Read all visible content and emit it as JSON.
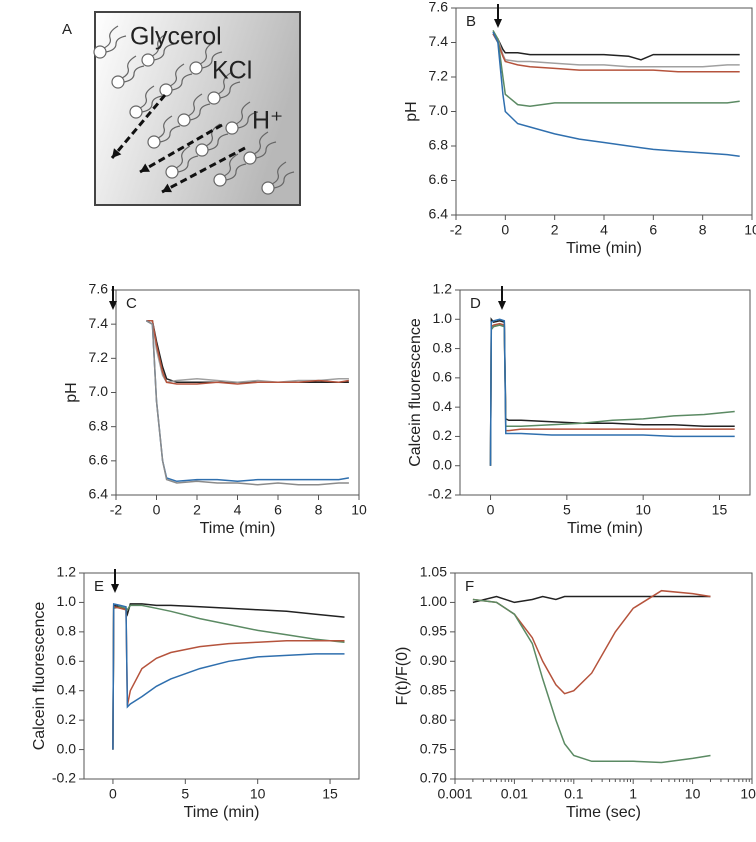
{
  "panel_a": {
    "label": "A",
    "texts": [
      "Glycerol",
      "KCl",
      "H⁺"
    ]
  },
  "chart_data": [
    {
      "type": "line",
      "panel_label": "B",
      "xlabel": "Time (min)",
      "ylabel": "pH",
      "xlim": [
        -2,
        10
      ],
      "xticks": [
        -2,
        0,
        2,
        4,
        6,
        8,
        10
      ],
      "ylim": [
        6.4,
        7.6
      ],
      "yticks": [
        6.4,
        6.6,
        6.8,
        {
          "value": 7,
          "label": "7.0"
        },
        7.2,
        7.4,
        7.6
      ],
      "x": [
        -0.5,
        -0.3,
        -0.1,
        0,
        0.5,
        1,
        2,
        3,
        4,
        5,
        5.5,
        6,
        7,
        8,
        9,
        9.5
      ],
      "series": [
        {
          "color": "#222222",
          "values": [
            7.45,
            7.42,
            7.36,
            7.34,
            7.34,
            7.33,
            7.33,
            7.33,
            7.33,
            7.32,
            7.3,
            7.33,
            7.33,
            7.33,
            7.33,
            7.33
          ]
        },
        {
          "color": "#a0a0a0",
          "values": [
            7.45,
            7.42,
            7.33,
            7.3,
            7.29,
            7.29,
            7.28,
            7.27,
            7.27,
            7.26,
            7.26,
            7.26,
            7.26,
            7.26,
            7.27,
            7.27
          ]
        },
        {
          "color": "#b5533c",
          "values": [
            7.45,
            7.4,
            7.32,
            7.29,
            7.27,
            7.26,
            7.25,
            7.24,
            7.24,
            7.24,
            7.24,
            7.24,
            7.23,
            7.23,
            7.23,
            7.23
          ]
        },
        {
          "color": "#5b8a63",
          "values": [
            7.47,
            7.42,
            7.2,
            7.1,
            7.04,
            7.03,
            7.05,
            7.05,
            7.05,
            7.05,
            7.05,
            7.05,
            7.05,
            7.05,
            7.05,
            7.06
          ]
        },
        {
          "color": "#2f6fae",
          "values": [
            7.46,
            7.4,
            7.1,
            7.0,
            6.93,
            6.91,
            6.87,
            6.84,
            6.82,
            6.8,
            6.79,
            6.78,
            6.77,
            6.76,
            6.75,
            6.74
          ]
        }
      ]
    },
    {
      "type": "line",
      "panel_label": "C",
      "xlabel": "Time (min)",
      "ylabel": "pH",
      "xlim": [
        -2,
        10
      ],
      "xticks": [
        -2,
        0,
        2,
        4,
        6,
        8,
        10
      ],
      "ylim": [
        6.4,
        7.6
      ],
      "yticks": [
        6.4,
        6.6,
        6.8,
        {
          "value": 7,
          "label": "7.0"
        },
        7.2,
        7.4,
        7.6
      ],
      "x": [
        -0.5,
        -0.2,
        0,
        0.3,
        0.5,
        1,
        2,
        3,
        4,
        5,
        6,
        7,
        8,
        9,
        9.5
      ],
      "series": [
        {
          "color": "#222222",
          "values": [
            7.42,
            7.42,
            7.3,
            7.15,
            7.08,
            7.06,
            7.06,
            7.06,
            7.06,
            7.06,
            7.06,
            7.06,
            7.06,
            7.06,
            7.06
          ]
        },
        {
          "color": "#a0a0a0",
          "values": [
            7.42,
            7.42,
            7.25,
            7.1,
            7.06,
            7.07,
            7.08,
            7.07,
            7.06,
            7.07,
            7.06,
            7.07,
            7.07,
            7.08,
            7.08
          ]
        },
        {
          "color": "#b5533c",
          "values": [
            7.42,
            7.42,
            7.28,
            7.12,
            7.06,
            7.05,
            7.05,
            7.06,
            7.05,
            7.06,
            7.06,
            7.06,
            7.07,
            7.06,
            7.07
          ]
        },
        {
          "color": "#2f6fae",
          "values": [
            7.42,
            7.4,
            6.95,
            6.6,
            6.5,
            6.48,
            6.49,
            6.49,
            6.48,
            6.49,
            6.49,
            6.49,
            6.49,
            6.49,
            6.5
          ]
        },
        {
          "color": "#8a8a8a",
          "values": [
            7.42,
            7.4,
            6.95,
            6.6,
            6.49,
            6.47,
            6.48,
            6.47,
            6.47,
            6.46,
            6.47,
            6.46,
            6.46,
            6.47,
            6.47
          ]
        }
      ]
    },
    {
      "type": "line",
      "panel_label": "D",
      "xlabel": "Time (min)",
      "ylabel": "Calcein fluorescence",
      "xlim": [
        -2,
        17
      ],
      "xticks": [
        0,
        5,
        10,
        15
      ],
      "ylim": [
        -0.2,
        1.2
      ],
      "yticks": [
        -0.2,
        {
          "value": 0,
          "label": "0.0"
        },
        0.2,
        0.4,
        0.6,
        0.8,
        {
          "value": 1,
          "label": "1.0"
        },
        1.2
      ],
      "x": [
        0,
        0.05,
        0.2,
        0.6,
        0.9,
        1.0,
        1.2,
        2,
        4,
        6,
        8,
        10,
        12,
        14,
        16
      ],
      "series": [
        {
          "color": "#222222",
          "values": [
            0,
            1.0,
            0.98,
            0.99,
            0.98,
            0.32,
            0.31,
            0.31,
            0.3,
            0.29,
            0.29,
            0.28,
            0.28,
            0.27,
            0.27
          ]
        },
        {
          "color": "#b5533c",
          "values": [
            0,
            0.95,
            0.96,
            0.97,
            0.96,
            0.24,
            0.24,
            0.25,
            0.25,
            0.25,
            0.25,
            0.25,
            0.25,
            0.25,
            0.25
          ]
        },
        {
          "color": "#5b8a63",
          "values": [
            0,
            0.93,
            0.95,
            0.96,
            0.95,
            0.27,
            0.27,
            0.27,
            0.28,
            0.29,
            0.31,
            0.32,
            0.34,
            0.35,
            0.37
          ]
        },
        {
          "color": "#2f6fae",
          "values": [
            0,
            0.98,
            0.99,
            1.0,
            0.99,
            0.22,
            0.22,
            0.22,
            0.21,
            0.21,
            0.21,
            0.21,
            0.2,
            0.2,
            0.2
          ]
        }
      ]
    },
    {
      "type": "line",
      "panel_label": "E",
      "xlabel": "Time (min)",
      "ylabel": "Calcein fluorescence",
      "xlim": [
        -2,
        17
      ],
      "xticks": [
        0,
        5,
        10,
        15
      ],
      "ylim": [
        -0.2,
        1.2
      ],
      "yticks": [
        -0.2,
        {
          "value": 0,
          "label": "0.0"
        },
        0.2,
        0.4,
        0.6,
        0.8,
        {
          "value": 1,
          "label": "1.0"
        },
        1.2
      ],
      "x": [
        0,
        0.05,
        0.5,
        0.9,
        1.0,
        1.2,
        2,
        3,
        4,
        6,
        8,
        10,
        12,
        14,
        16
      ],
      "series": [
        {
          "color": "#222222",
          "values": [
            0,
            0.98,
            0.97,
            0.95,
            0.92,
            0.99,
            0.99,
            0.98,
            0.98,
            0.97,
            0.96,
            0.95,
            0.94,
            0.92,
            0.9
          ]
        },
        {
          "color": "#5b8a63",
          "values": [
            0,
            0.96,
            0.97,
            0.96,
            0.95,
            0.98,
            0.98,
            0.96,
            0.94,
            0.89,
            0.85,
            0.81,
            0.78,
            0.75,
            0.73
          ]
        },
        {
          "color": "#b5533c",
          "values": [
            0,
            0.97,
            0.96,
            0.95,
            0.3,
            0.4,
            0.55,
            0.62,
            0.66,
            0.7,
            0.72,
            0.73,
            0.74,
            0.74,
            0.74
          ]
        },
        {
          "color": "#2f6fae",
          "values": [
            0,
            0.99,
            0.98,
            0.97,
            0.29,
            0.31,
            0.36,
            0.43,
            0.48,
            0.55,
            0.6,
            0.63,
            0.64,
            0.65,
            0.65
          ]
        }
      ]
    },
    {
      "type": "line",
      "panel_label": "F",
      "xlabel": "Time (sec)",
      "ylabel": "F(t)/F(0)",
      "xscale": "log",
      "xlim": [
        0.001,
        100
      ],
      "xticks": [
        0.001,
        0.01,
        0.1,
        1,
        10,
        100
      ],
      "ylim": [
        0.7,
        1.05
      ],
      "yticks": [
        {
          "value": 0.7,
          "label": "0.70"
        },
        0.75,
        {
          "value": 0.8,
          "label": "0.80"
        },
        0.85,
        {
          "value": 0.9,
          "label": "0.90"
        },
        0.95,
        {
          "value": 1,
          "label": "1.00"
        },
        1.05
      ],
      "x": [
        0.002,
        0.005,
        0.01,
        0.02,
        0.03,
        0.05,
        0.07,
        0.1,
        0.2,
        0.5,
        1,
        3,
        10,
        20
      ],
      "series": [
        {
          "color": "#222222",
          "values": [
            1.0,
            1.01,
            1.0,
            1.005,
            1.01,
            1.005,
            1.01,
            1.01,
            1.01,
            1.01,
            1.01,
            1.01,
            1.01,
            1.01
          ]
        },
        {
          "color": "#b5533c",
          "values": [
            1.005,
            1.0,
            0.98,
            0.94,
            0.9,
            0.86,
            0.845,
            0.85,
            0.88,
            0.95,
            0.99,
            1.02,
            1.015,
            1.01
          ]
        },
        {
          "color": "#5b8a63",
          "values": [
            1.005,
            1.0,
            0.98,
            0.93,
            0.87,
            0.8,
            0.76,
            0.74,
            0.73,
            0.73,
            0.73,
            0.728,
            0.735,
            0.74
          ]
        }
      ]
    }
  ]
}
